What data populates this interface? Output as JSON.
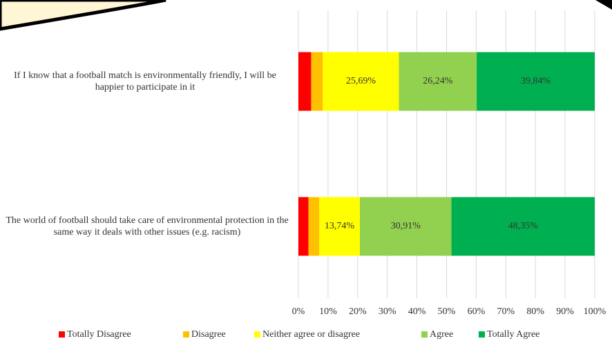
{
  "chart_data": {
    "type": "stacked-bar",
    "orientation": "horizontal",
    "categories": [
      "If I know that a football match is environmentally friendly, I will be happier to participate in it",
      "The world of football should take care of environmental protection in the same way it deals with other issues (e.g. racism)"
    ],
    "series": [
      {
        "name": "Totally Disagree",
        "color": "#ff0000",
        "values": [
          4.3,
          3.4
        ],
        "value_labels": [
          null,
          null
        ]
      },
      {
        "name": "Disagree",
        "color": "#ffc000",
        "values": [
          3.93,
          3.6
        ],
        "value_labels": [
          null,
          null
        ]
      },
      {
        "name": "Neither agree or disagree",
        "color": "#ffff00",
        "values": [
          25.69,
          13.74
        ],
        "value_labels": [
          "25,69%",
          "13,74%"
        ]
      },
      {
        "name": "Agree",
        "color": "#92d050",
        "values": [
          26.24,
          30.91
        ],
        "value_labels": [
          "26,24%",
          "30,91%"
        ]
      },
      {
        "name": "Totally Agree",
        "color": "#00b050",
        "values": [
          39.84,
          48.35
        ],
        "value_labels": [
          "39,84%",
          "48,35%"
        ]
      }
    ],
    "xlim": [
      0,
      100
    ],
    "xticks": [
      {
        "value": 0,
        "label": "0%"
      },
      {
        "value": 10,
        "label": "10%"
      },
      {
        "value": 20,
        "label": "20%"
      },
      {
        "value": 30,
        "label": "30%"
      },
      {
        "value": 40,
        "label": "40%"
      },
      {
        "value": 50,
        "label": "50%"
      },
      {
        "value": 60,
        "label": "60%"
      },
      {
        "value": 70,
        "label": "70%"
      },
      {
        "value": 80,
        "label": "80%"
      },
      {
        "value": 90,
        "label": "90%"
      },
      {
        "value": 100,
        "label": "100%"
      }
    ],
    "grid": true,
    "legend": "bottom"
  }
}
